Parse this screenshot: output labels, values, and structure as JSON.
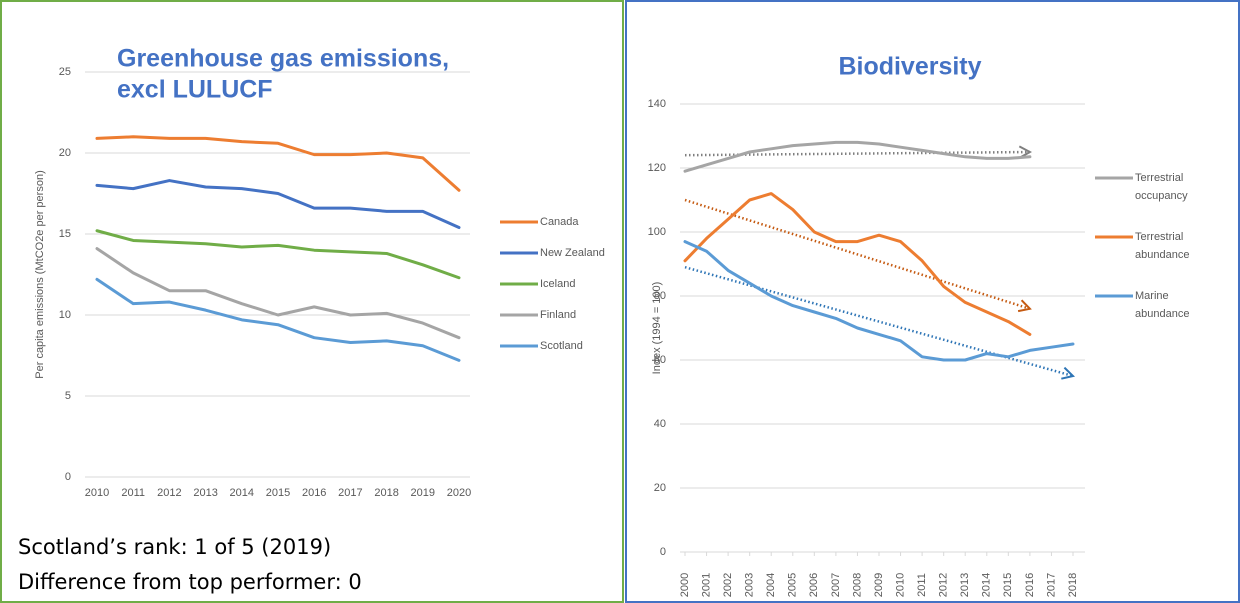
{
  "chart_data": [
    {
      "type": "line",
      "title": [
        "Greenhouse gas emissions,",
        "excl LULUCF"
      ],
      "y_label": "Per capita emissions (MtCO2e per person)",
      "categories": [
        "2010",
        "2011",
        "2012",
        "2013",
        "2014",
        "2015",
        "2016",
        "2017",
        "2018",
        "2019",
        "2020"
      ],
      "ylim": [
        0,
        25
      ],
      "yticks": [
        0,
        5,
        10,
        15,
        20,
        25
      ],
      "grid": true,
      "series": [
        {
          "name": "Canada",
          "color": "#ed7d31",
          "values": [
            20.9,
            21.0,
            20.9,
            20.9,
            20.7,
            20.6,
            19.9,
            19.9,
            20.0,
            19.7,
            17.7
          ]
        },
        {
          "name": "New Zealand",
          "color": "#4472c4",
          "values": [
            18.0,
            17.8,
            18.3,
            17.9,
            17.8,
            17.5,
            16.6,
            16.6,
            16.4,
            16.4,
            15.4
          ]
        },
        {
          "name": "Iceland",
          "color": "#70ad47",
          "values": [
            15.2,
            14.6,
            14.5,
            14.4,
            14.2,
            14.3,
            14.0,
            13.9,
            13.8,
            13.1,
            12.3
          ]
        },
        {
          "name": "Finland",
          "color": "#a5a5a5",
          "values": [
            14.1,
            12.6,
            11.5,
            11.5,
            10.7,
            10.0,
            10.5,
            10.0,
            10.1,
            9.5,
            8.6
          ]
        },
        {
          "name": "Scotland",
          "color": "#5b9bd5",
          "values": [
            12.2,
            10.7,
            10.8,
            10.3,
            9.7,
            9.4,
            8.6,
            8.3,
            8.4,
            8.1,
            7.2
          ]
        }
      ],
      "notes": [
        "Scotland’s rank: 1 of 5 (2019)",
        "Difference from top performer: 0"
      ]
    },
    {
      "type": "line",
      "title": [
        "Biodiversity"
      ],
      "y_label": "Index (1994 = 100)",
      "x": [
        2000,
        2001,
        2002,
        2003,
        2004,
        2005,
        2006,
        2007,
        2008,
        2009,
        2010,
        2011,
        2012,
        2013,
        2014,
        2015,
        2016,
        2017,
        2018
      ],
      "xlim": [
        2000,
        2018
      ],
      "xticks": [
        2000,
        2001,
        2002,
        2003,
        2004,
        2005,
        2006,
        2007,
        2008,
        2009,
        2010,
        2011,
        2012,
        2013,
        2014,
        2015,
        2016,
        2017,
        2018
      ],
      "ylim": [
        0,
        140
      ],
      "yticks": [
        0,
        20,
        40,
        60,
        80,
        100,
        120,
        140
      ],
      "grid": true,
      "series": [
        {
          "name": "Terrestrial occupancy",
          "color": "#a5a5a5",
          "values": [
            119,
            121,
            123,
            125,
            126,
            127,
            127.5,
            128,
            128,
            127.5,
            126.5,
            125.5,
            124.5,
            123.5,
            123,
            123,
            123.5,
            null,
            null
          ]
        },
        {
          "name": "Terrestrial abundance",
          "color": "#ed7d31",
          "values": [
            91,
            98,
            104,
            110,
            112,
            107,
            100,
            97,
            97,
            99,
            97,
            91,
            83,
            78,
            75,
            72,
            68,
            null,
            null
          ]
        },
        {
          "name": "Marine abundance",
          "color": "#5b9bd5",
          "values": [
            97,
            94,
            88,
            84,
            80,
            77,
            75,
            73,
            70,
            68,
            66,
            61,
            60,
            60,
            62,
            61,
            63,
            64,
            65
          ]
        }
      ],
      "trend_lines": [
        {
          "color": "#7f7f7f",
          "x": [
            2000,
            2016
          ],
          "values": [
            124,
            125
          ]
        },
        {
          "color": "#c55a11",
          "x": [
            2000,
            2016
          ],
          "values": [
            110,
            76
          ]
        },
        {
          "color": "#2e75b6",
          "x": [
            2000,
            2018
          ],
          "values": [
            89,
            55
          ]
        }
      ]
    }
  ]
}
